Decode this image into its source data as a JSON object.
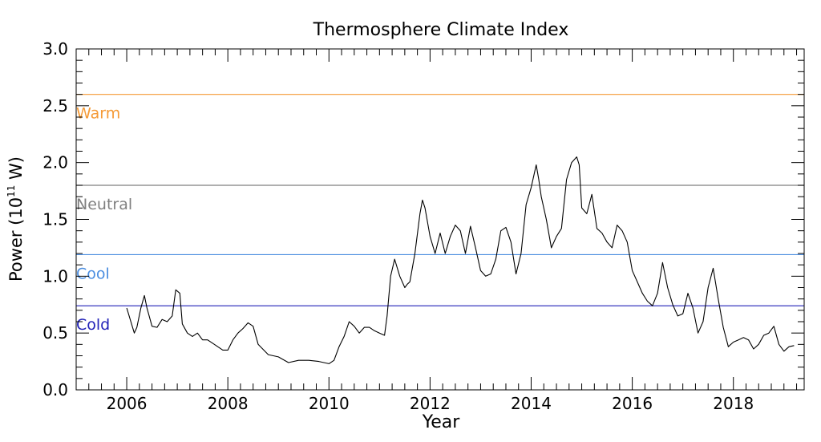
{
  "chart_data": {
    "type": "line",
    "title": "Thermosphere Climate Index",
    "xlabel": "Year",
    "ylabel_main": "Power (10",
    "ylabel_exp": "11",
    "ylabel_unit": " W)",
    "xlim": [
      2005,
      2019.4
    ],
    "ylim": [
      0.0,
      3.0
    ],
    "xticks": [
      2006,
      2008,
      2010,
      2012,
      2014,
      2016,
      2018
    ],
    "yticks": [
      "0.0",
      "0.5",
      "1.0",
      "1.5",
      "2.0",
      "2.5",
      "3.0"
    ],
    "grid": false,
    "thresholds": [
      {
        "label": "Warm",
        "value": 2.6,
        "color": "#f59a36"
      },
      {
        "label": "Neutral",
        "value": 1.8,
        "color": "#7f7f7f"
      },
      {
        "label": "Cool",
        "value": 1.19,
        "color": "#4a8de0"
      },
      {
        "label": "Cold",
        "value": 0.74,
        "color": "#2222b8"
      }
    ],
    "series": [
      {
        "color": "#000000",
        "x": [
          2006.0,
          2006.15,
          2006.2,
          2006.28,
          2006.35,
          2006.4,
          2006.5,
          2006.6,
          2006.7,
          2006.8,
          2006.9,
          2006.97,
          2007.05,
          2007.1,
          2007.2,
          2007.3,
          2007.4,
          2007.5,
          2007.6,
          2007.7,
          2007.8,
          2007.9,
          2008.0,
          2008.1,
          2008.2,
          2008.3,
          2008.4,
          2008.5,
          2008.6,
          2008.8,
          2009.0,
          2009.2,
          2009.4,
          2009.6,
          2009.8,
          2010.0,
          2010.1,
          2010.2,
          2010.3,
          2010.4,
          2010.5,
          2010.6,
          2010.7,
          2010.8,
          2010.9,
          2011.0,
          2011.1,
          2011.15,
          2011.22,
          2011.3,
          2011.4,
          2011.5,
          2011.55,
          2011.6,
          2011.7,
          2011.8,
          2011.85,
          2011.9,
          2012.0,
          2012.1,
          2012.2,
          2012.3,
          2012.4,
          2012.5,
          2012.6,
          2012.7,
          2012.8,
          2012.9,
          2013.0,
          2013.1,
          2013.2,
          2013.3,
          2013.4,
          2013.5,
          2013.6,
          2013.7,
          2013.8,
          2013.9,
          2014.0,
          2014.1,
          2014.15,
          2014.2,
          2014.3,
          2014.4,
          2014.5,
          2014.6,
          2014.7,
          2014.8,
          2014.9,
          2014.95,
          2015.0,
          2015.1,
          2015.2,
          2015.3,
          2015.4,
          2015.5,
          2015.6,
          2015.7,
          2015.8,
          2015.9,
          2016.0,
          2016.1,
          2016.2,
          2016.3,
          2016.4,
          2016.5,
          2016.6,
          2016.7,
          2016.8,
          2016.9,
          2017.0,
          2017.1,
          2017.2,
          2017.3,
          2017.4,
          2017.5,
          2017.6,
          2017.7,
          2017.8,
          2017.9,
          2018.0,
          2018.1,
          2018.2,
          2018.3,
          2018.4,
          2018.5,
          2018.6,
          2018.7,
          2018.8,
          2018.9,
          2019.0,
          2019.1,
          2019.2
        ],
        "y": [
          0.72,
          0.5,
          0.55,
          0.72,
          0.83,
          0.72,
          0.56,
          0.55,
          0.62,
          0.6,
          0.65,
          0.88,
          0.85,
          0.58,
          0.5,
          0.47,
          0.5,
          0.44,
          0.44,
          0.41,
          0.38,
          0.35,
          0.35,
          0.44,
          0.5,
          0.54,
          0.59,
          0.56,
          0.4,
          0.31,
          0.29,
          0.24,
          0.26,
          0.26,
          0.25,
          0.23,
          0.26,
          0.38,
          0.47,
          0.6,
          0.56,
          0.5,
          0.55,
          0.55,
          0.52,
          0.5,
          0.48,
          0.65,
          1.0,
          1.15,
          1.0,
          0.9,
          0.93,
          0.95,
          1.2,
          1.55,
          1.67,
          1.6,
          1.35,
          1.2,
          1.38,
          1.2,
          1.35,
          1.45,
          1.4,
          1.2,
          1.44,
          1.25,
          1.05,
          1.0,
          1.02,
          1.15,
          1.4,
          1.43,
          1.3,
          1.02,
          1.2,
          1.63,
          1.78,
          1.98,
          1.85,
          1.7,
          1.5,
          1.25,
          1.35,
          1.42,
          1.85,
          2.0,
          2.05,
          1.98,
          1.6,
          1.55,
          1.72,
          1.42,
          1.38,
          1.3,
          1.25,
          1.45,
          1.4,
          1.3,
          1.05,
          0.95,
          0.85,
          0.78,
          0.74,
          0.85,
          1.12,
          0.9,
          0.75,
          0.65,
          0.67,
          0.85,
          0.72,
          0.5,
          0.6,
          0.9,
          1.07,
          0.8,
          0.55,
          0.38,
          0.42,
          0.44,
          0.46,
          0.44,
          0.36,
          0.4,
          0.48,
          0.5,
          0.56,
          0.4,
          0.34,
          0.38,
          0.39
        ]
      }
    ]
  }
}
